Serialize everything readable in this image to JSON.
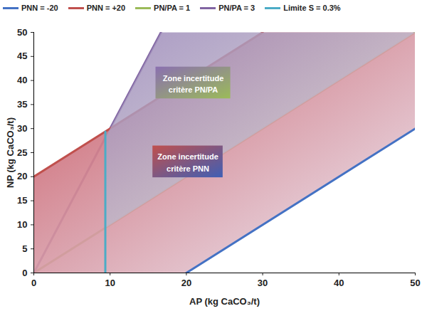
{
  "chart_data": {
    "type": "line",
    "xlabel": "AP (kg CaCO₃/t)",
    "ylabel": "NP (kg CaCO₃/t)",
    "xlim": [
      0,
      50
    ],
    "ylim": [
      0,
      50
    ],
    "xticks": [
      0,
      10,
      20,
      30,
      40,
      50
    ],
    "yticks": [
      0,
      5,
      10,
      15,
      20,
      25,
      30,
      35,
      40,
      45,
      50
    ],
    "grid": false,
    "legend": "top",
    "series": [
      {
        "name": "PNN = -20",
        "color": "#4472c4",
        "x": [
          20,
          50
        ],
        "values": [
          0,
          30
        ]
      },
      {
        "name": "PNN = +20",
        "color": "#c0504d",
        "x": [
          0,
          30
        ],
        "values": [
          20,
          50
        ]
      },
      {
        "name": "PN/PA = 1",
        "color": "#9bbb59",
        "x": [
          0,
          50
        ],
        "values": [
          0,
          50
        ]
      },
      {
        "name": "PN/PA = 3",
        "color": "#8064a2",
        "x": [
          0,
          16.667
        ],
        "values": [
          0,
          50
        ]
      },
      {
        "name": "Limite S = 0.3%",
        "color": "#4bacc6",
        "x": [
          9.375,
          9.375
        ],
        "values": [
          0,
          29.375
        ]
      }
    ],
    "zones": [
      {
        "label": "Zone incertitude\ncritère PN/PA",
        "x": [
          9.375,
          16.667,
          50,
          9.375
        ],
        "y": [
          28.125,
          50,
          50,
          9.375
        ]
      },
      {
        "label": "Zone incertitude\ncritère PNN",
        "x": [
          0,
          0,
          30,
          50,
          50,
          20
        ],
        "y": [
          0,
          20,
          50,
          50,
          30,
          0
        ]
      }
    ]
  }
}
